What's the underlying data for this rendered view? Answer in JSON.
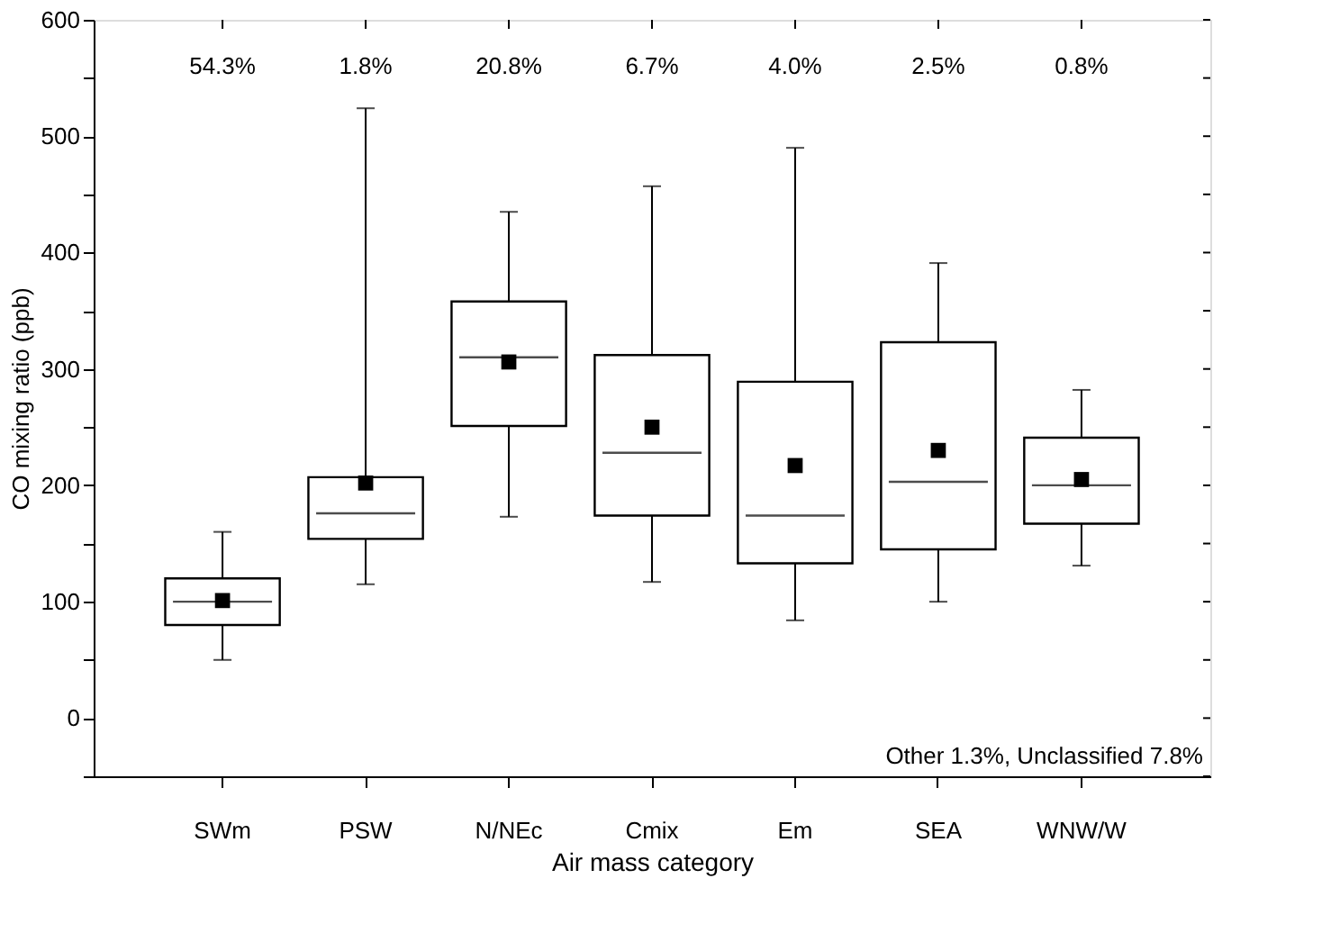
{
  "chart_data": {
    "type": "box",
    "xlabel": "Air mass category",
    "ylabel": "CO mixing ratio (ppb)",
    "categories": [
      "SWm",
      "PSW",
      "N/NEc",
      "Cmix",
      "Em",
      "SEA",
      "WNW/W"
    ],
    "boxes": [
      {
        "low": 50,
        "q1": 80,
        "median": 100,
        "q3": 120,
        "high": 160,
        "mean": 101
      },
      {
        "low": 115,
        "q1": 154,
        "median": 176,
        "q3": 207,
        "high": 524,
        "mean": 202
      },
      {
        "low": 173,
        "q1": 251,
        "median": 310,
        "q3": 358,
        "high": 435,
        "mean": 306
      },
      {
        "low": 117,
        "q1": 174,
        "median": 228,
        "q3": 312,
        "high": 457,
        "mean": 250
      },
      {
        "low": 84,
        "q1": 133,
        "median": 174,
        "q3": 289,
        "high": 490,
        "mean": 217
      },
      {
        "low": 100,
        "q1": 145,
        "median": 203,
        "q3": 323,
        "high": 391,
        "mean": 230
      },
      {
        "low": 131,
        "q1": 167,
        "median": 200,
        "q3": 241,
        "high": 282,
        "mean": 205
      }
    ],
    "color": "#000000",
    "marker": "square",
    "grid": false,
    "ylim": [
      -50,
      600
    ],
    "yticks": [
      {
        "value": -50,
        "label": null
      },
      0,
      {
        "value": 50,
        "label": null
      },
      100,
      {
        "value": 150,
        "label": null
      },
      200,
      {
        "value": 250,
        "label": null
      },
      300,
      {
        "value": 350,
        "label": null
      },
      400,
      {
        "value": 450,
        "label": null
      },
      500,
      {
        "value": 550,
        "label": null
      },
      600
    ],
    "annotations": [
      "54.3%",
      "1.8%",
      "20.8%",
      "6.7%",
      "4.0%",
      "2.5%",
      "0.8%",
      "Other 1.3%, Unclassified 7.8%"
    ]
  }
}
